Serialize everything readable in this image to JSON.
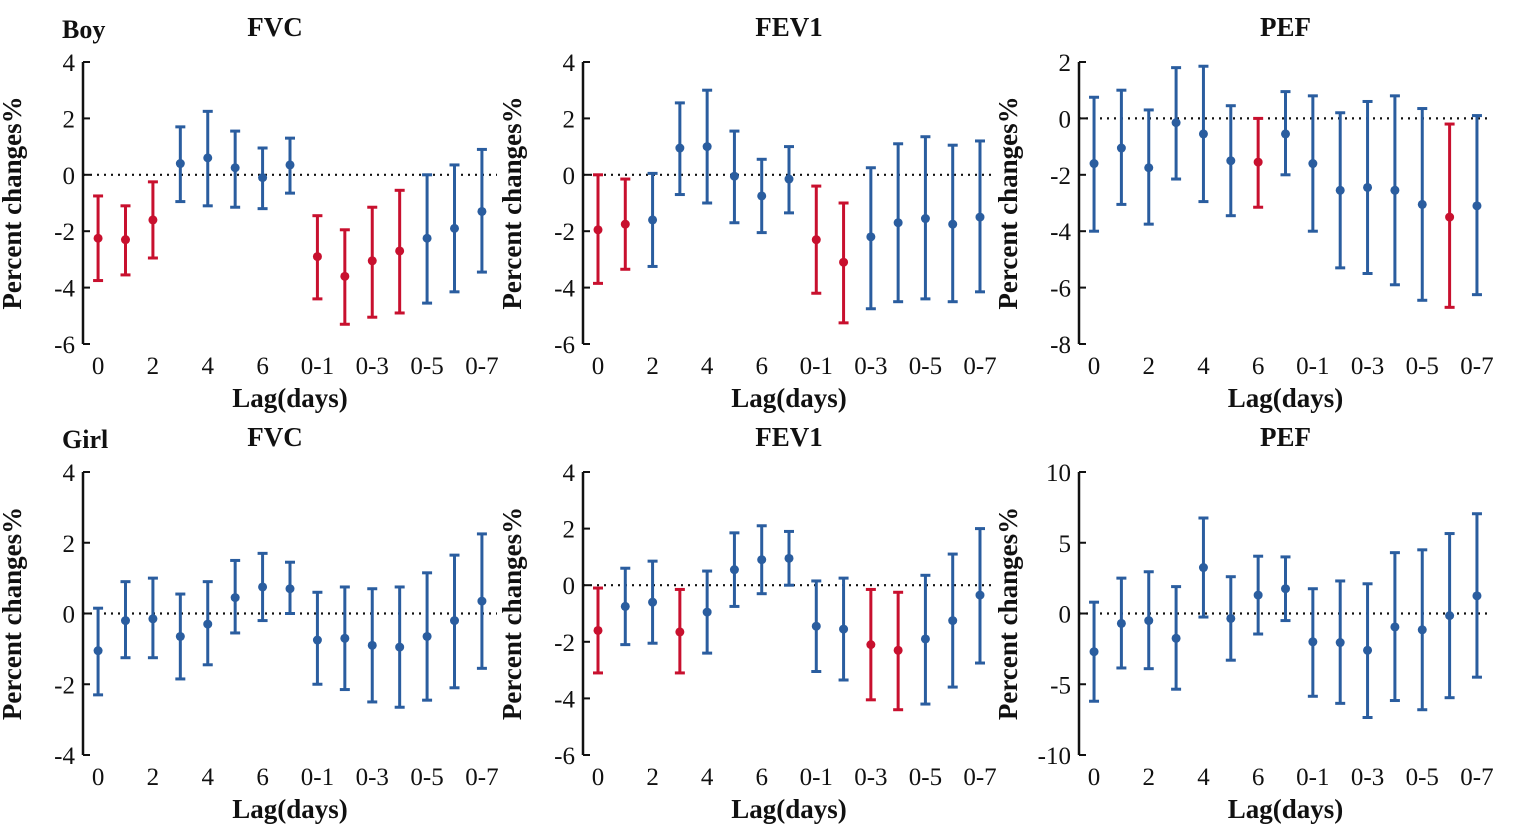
{
  "colors": {
    "significant": "#c8102e",
    "not_significant": "#2a5d9f",
    "axis": "#111111",
    "reference": "#111111"
  },
  "groups": [
    {
      "label": "Boy"
    },
    {
      "label": "Girl"
    }
  ],
  "chart_data": [
    {
      "type": "errorbar",
      "group": "Boy",
      "title": "FVC",
      "xlabel": "Lag(days)",
      "ylabel": "Percent changes%",
      "ylim": [
        -6,
        4
      ],
      "yticks": [
        "4",
        "2",
        "0",
        "-2",
        "-4",
        "-6"
      ],
      "categories": [
        "0",
        "1",
        "2",
        "3",
        "4",
        "5",
        "6",
        "7",
        "0-1",
        "0-2",
        "0-3",
        "0-4",
        "0-5",
        "0-6",
        "0-7"
      ],
      "x_tick_labels": [
        "0",
        "2",
        "4",
        "6",
        "0-1",
        "0-3",
        "0-5",
        "0-7"
      ],
      "reference_line": 0,
      "estimate": [
        -2.25,
        -2.3,
        -1.6,
        0.4,
        0.6,
        0.25,
        -0.1,
        0.35,
        -2.9,
        -3.6,
        -3.05,
        -2.7,
        -2.25,
        -1.9,
        -1.3
      ],
      "lower": [
        -3.75,
        -3.55,
        -2.95,
        -0.95,
        -1.1,
        -1.15,
        -1.2,
        -0.65,
        -4.4,
        -5.3,
        -5.05,
        -4.9,
        -4.55,
        -4.15,
        -3.45
      ],
      "upper": [
        -0.75,
        -1.1,
        -0.25,
        1.7,
        2.25,
        1.55,
        0.95,
        1.3,
        -1.45,
        -1.95,
        -1.15,
        -0.55,
        0.0,
        0.35,
        0.9
      ],
      "significant": [
        true,
        true,
        true,
        false,
        false,
        false,
        false,
        false,
        true,
        true,
        true,
        true,
        false,
        false,
        false
      ]
    },
    {
      "type": "errorbar",
      "group": "Boy",
      "title": "FEV1",
      "xlabel": "Lag(days)",
      "ylabel": "Percent changes%",
      "ylim": [
        -6,
        4
      ],
      "yticks": [
        "4",
        "2",
        "0",
        "-2",
        "-4",
        "-6"
      ],
      "categories": [
        "0",
        "1",
        "2",
        "3",
        "4",
        "5",
        "6",
        "7",
        "0-1",
        "0-2",
        "0-3",
        "0-4",
        "0-5",
        "0-6",
        "0-7"
      ],
      "x_tick_labels": [
        "0",
        "2",
        "4",
        "6",
        "0-1",
        "0-3",
        "0-5",
        "0-7"
      ],
      "reference_line": 0,
      "estimate": [
        -1.95,
        -1.75,
        -1.6,
        0.95,
        1.0,
        -0.05,
        -0.75,
        -0.15,
        -2.3,
        -3.1,
        -2.2,
        -1.7,
        -1.55,
        -1.75,
        -1.5
      ],
      "lower": [
        -3.85,
        -3.35,
        -3.25,
        -0.7,
        -1.0,
        -1.7,
        -2.05,
        -1.35,
        -4.2,
        -5.25,
        -4.75,
        -4.5,
        -4.4,
        -4.5,
        -4.15
      ],
      "upper": [
        0.0,
        -0.15,
        0.05,
        2.55,
        3.0,
        1.55,
        0.55,
        1.0,
        -0.4,
        -1.0,
        0.25,
        1.1,
        1.35,
        1.05,
        1.2
      ],
      "significant": [
        true,
        true,
        false,
        false,
        false,
        false,
        false,
        false,
        true,
        true,
        false,
        false,
        false,
        false,
        false
      ]
    },
    {
      "type": "errorbar",
      "group": "Boy",
      "title": "PEF",
      "xlabel": "Lag(days)",
      "ylabel": "Percent changes%",
      "ylim": [
        -8,
        2
      ],
      "yticks": [
        "2",
        "0",
        "-2",
        "-4",
        "-6",
        "-8"
      ],
      "categories": [
        "0",
        "1",
        "2",
        "3",
        "4",
        "5",
        "6",
        "7",
        "0-1",
        "0-2",
        "0-3",
        "0-4",
        "0-5",
        "0-6",
        "0-7"
      ],
      "x_tick_labels": [
        "0",
        "2",
        "4",
        "6",
        "0-1",
        "0-3",
        "0-5",
        "0-7"
      ],
      "reference_line": 0,
      "estimate": [
        -1.6,
        -1.05,
        -1.75,
        -0.15,
        -0.55,
        -1.5,
        -1.55,
        -0.55,
        -1.6,
        -2.55,
        -2.45,
        -2.55,
        -3.05,
        -3.5,
        -3.1
      ],
      "lower": [
        -4.0,
        -3.05,
        -3.75,
        -2.15,
        -2.95,
        -3.45,
        -3.15,
        -2.0,
        -4.0,
        -5.3,
        -5.5,
        -5.9,
        -6.45,
        -6.7,
        -6.25
      ],
      "upper": [
        0.75,
        1.0,
        0.3,
        1.8,
        1.85,
        0.45,
        0.0,
        0.95,
        0.8,
        0.2,
        0.6,
        0.8,
        0.35,
        -0.2,
        0.1
      ],
      "significant": [
        false,
        false,
        false,
        false,
        false,
        false,
        true,
        false,
        false,
        false,
        false,
        false,
        false,
        true,
        false
      ]
    },
    {
      "type": "errorbar",
      "group": "Girl",
      "title": "FVC",
      "xlabel": "Lag(days)",
      "ylabel": "Percent changes%",
      "ylim": [
        -4,
        4
      ],
      "yticks": [
        "4",
        "2",
        "0",
        "-2",
        "-4"
      ],
      "categories": [
        "0",
        "1",
        "2",
        "3",
        "4",
        "5",
        "6",
        "7",
        "0-1",
        "0-2",
        "0-3",
        "0-4",
        "0-5",
        "0-6",
        "0-7"
      ],
      "x_tick_labels": [
        "0",
        "2",
        "4",
        "6",
        "0-1",
        "0-3",
        "0-5",
        "0-7"
      ],
      "reference_line": 0,
      "estimate": [
        -1.05,
        -0.2,
        -0.15,
        -0.65,
        -0.3,
        0.45,
        0.75,
        0.7,
        -0.75,
        -0.7,
        -0.9,
        -0.95,
        -0.65,
        -0.2,
        0.35
      ],
      "lower": [
        -2.3,
        -1.25,
        -1.25,
        -1.85,
        -1.45,
        -0.55,
        -0.2,
        0.0,
        -2.0,
        -2.15,
        -2.5,
        -2.65,
        -2.45,
        -2.1,
        -1.55
      ],
      "upper": [
        0.15,
        0.9,
        1.0,
        0.55,
        0.9,
        1.5,
        1.7,
        1.45,
        0.6,
        0.75,
        0.7,
        0.75,
        1.15,
        1.65,
        2.25
      ],
      "significant": [
        false,
        false,
        false,
        false,
        false,
        false,
        false,
        false,
        false,
        false,
        false,
        false,
        false,
        false,
        false
      ]
    },
    {
      "type": "errorbar",
      "group": "Girl",
      "title": "FEV1",
      "xlabel": "Lag(days)",
      "ylabel": "Percent changes%",
      "ylim": [
        -6,
        4
      ],
      "yticks": [
        "4",
        "2",
        "0",
        "-2",
        "-4",
        "-6"
      ],
      "categories": [
        "0",
        "1",
        "2",
        "3",
        "4",
        "5",
        "6",
        "7",
        "0-1",
        "0-2",
        "0-3",
        "0-4",
        "0-5",
        "0-6",
        "0-7"
      ],
      "x_tick_labels": [
        "0",
        "2",
        "4",
        "6",
        "0-1",
        "0-3",
        "0-5",
        "0-7"
      ],
      "reference_line": 0,
      "estimate": [
        -1.6,
        -0.75,
        -0.6,
        -1.65,
        -0.95,
        0.55,
        0.9,
        0.95,
        -1.45,
        -1.55,
        -2.1,
        -2.3,
        -1.9,
        -1.25,
        -0.35
      ],
      "lower": [
        -3.1,
        -2.1,
        -2.05,
        -3.1,
        -2.4,
        -0.75,
        -0.3,
        0.0,
        -3.05,
        -3.35,
        -4.05,
        -4.4,
        -4.2,
        -3.6,
        -2.75
      ],
      "upper": [
        -0.1,
        0.6,
        0.85,
        -0.15,
        0.5,
        1.85,
        2.1,
        1.9,
        0.15,
        0.25,
        -0.15,
        -0.25,
        0.35,
        1.1,
        2.0
      ],
      "significant": [
        true,
        false,
        false,
        true,
        false,
        false,
        false,
        false,
        false,
        false,
        true,
        true,
        false,
        false,
        false
      ]
    },
    {
      "type": "errorbar",
      "group": "Girl",
      "title": "PEF",
      "xlabel": "Lag(days)",
      "ylabel": "Percent changes%",
      "ylim": [
        -10,
        10
      ],
      "yticks": [
        "10",
        "5",
        "0",
        "-5",
        "-10"
      ],
      "categories": [
        "0",
        "1",
        "2",
        "3",
        "4",
        "5",
        "6",
        "7",
        "0-1",
        "0-2",
        "0-3",
        "0-4",
        "0-5",
        "0-6",
        "0-7"
      ],
      "x_tick_labels": [
        "0",
        "2",
        "4",
        "6",
        "0-1",
        "0-3",
        "0-5",
        "0-7"
      ],
      "reference_line": 0,
      "estimate": [
        -2.7,
        -0.7,
        -0.5,
        -1.75,
        3.25,
        -0.35,
        1.3,
        1.75,
        -2.0,
        -2.05,
        -2.6,
        -0.95,
        -1.15,
        -0.15,
        1.25
      ],
      "lower": [
        -6.2,
        -3.85,
        -3.9,
        -5.35,
        -0.25,
        -3.3,
        -1.45,
        -0.5,
        -5.85,
        -6.35,
        -7.35,
        -6.15,
        -6.8,
        -5.95,
        -4.5
      ],
      "upper": [
        0.8,
        2.5,
        2.95,
        1.9,
        6.75,
        2.6,
        4.05,
        4.0,
        1.75,
        2.3,
        2.1,
        4.3,
        4.5,
        5.65,
        7.05
      ],
      "significant": [
        false,
        false,
        false,
        false,
        false,
        false,
        false,
        false,
        false,
        false,
        false,
        false,
        false,
        false,
        false
      ]
    }
  ]
}
